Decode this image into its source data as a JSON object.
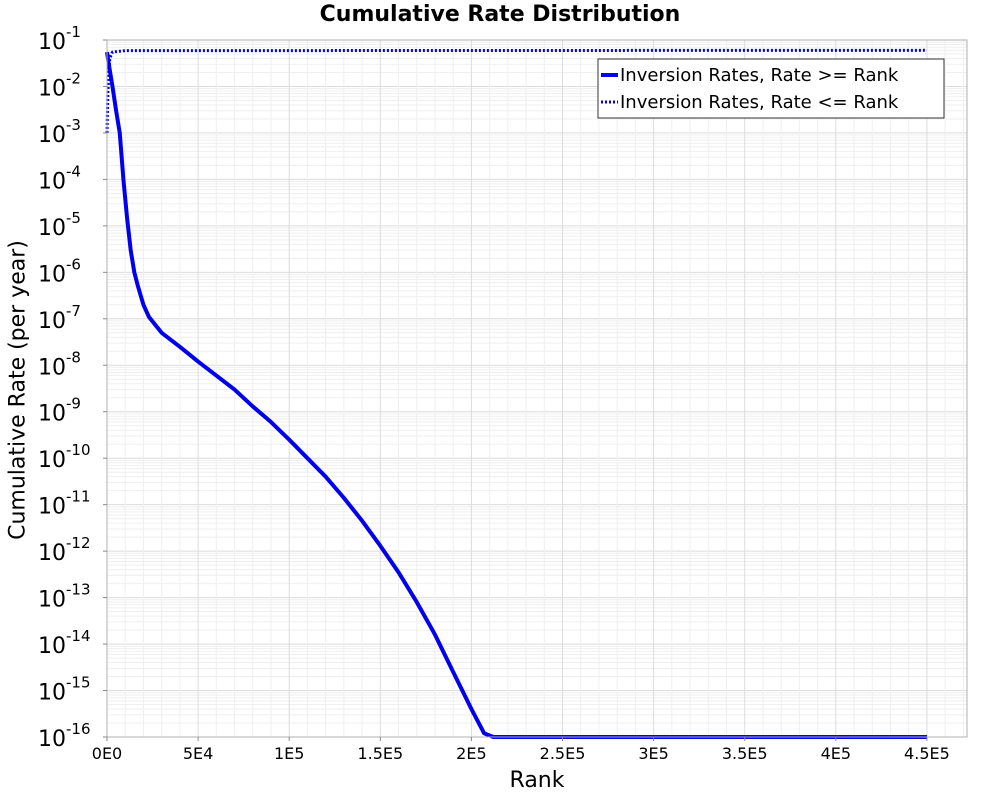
{
  "chart_data": {
    "type": "line",
    "title": "Cumulative Rate Distribution",
    "xlabel": "Rank",
    "ylabel": "Cumulative Rate (per year)",
    "xlim": [
      0,
      472000
    ],
    "ylim_exponent": [
      -16,
      -1
    ],
    "y_scale": "log",
    "grid": true,
    "legend_position": "top-right",
    "x_ticks": [
      {
        "value": 0,
        "label": "0E0"
      },
      {
        "value": 50000,
        "label": "5E4"
      },
      {
        "value": 100000,
        "label": "1E5"
      },
      {
        "value": 150000,
        "label": "1.5E5"
      },
      {
        "value": 200000,
        "label": "2E5"
      },
      {
        "value": 250000,
        "label": "2.5E5"
      },
      {
        "value": 300000,
        "label": "3E5"
      },
      {
        "value": 350000,
        "label": "3.5E5"
      },
      {
        "value": 400000,
        "label": "4E5"
      },
      {
        "value": 450000,
        "label": "4.5E5"
      }
    ],
    "y_ticks": [
      {
        "exp": -1,
        "base": "10",
        "power": "-1"
      },
      {
        "exp": -2,
        "base": "10",
        "power": "-2"
      },
      {
        "exp": -3,
        "base": "10",
        "power": "-3"
      },
      {
        "exp": -4,
        "base": "10",
        "power": "-4"
      },
      {
        "exp": -5,
        "base": "10",
        "power": "-5"
      },
      {
        "exp": -6,
        "base": "10",
        "power": "-6"
      },
      {
        "exp": -7,
        "base": "10",
        "power": "-7"
      },
      {
        "exp": -8,
        "base": "10",
        "power": "-8"
      },
      {
        "exp": -9,
        "base": "10",
        "power": "-9"
      },
      {
        "exp": -10,
        "base": "10",
        "power": "-10"
      },
      {
        "exp": -11,
        "base": "10",
        "power": "-11"
      },
      {
        "exp": -12,
        "base": "10",
        "power": "-12"
      },
      {
        "exp": -13,
        "base": "10",
        "power": "-13"
      },
      {
        "exp": -14,
        "base": "10",
        "power": "-14"
      },
      {
        "exp": -15,
        "base": "10",
        "power": "-15"
      },
      {
        "exp": -16,
        "base": "10",
        "power": "-16"
      }
    ],
    "series": [
      {
        "name": "Inversion Rates, Rate >= Rank",
        "style": "solid",
        "color": "#0000ee",
        "points": [
          [
            0,
            0.055
          ],
          [
            1000,
            0.03
          ],
          [
            3000,
            0.01
          ],
          [
            5000,
            0.003
          ],
          [
            7000,
            0.001
          ],
          [
            9000,
            0.0001
          ],
          [
            11000,
            1.5e-05
          ],
          [
            13000,
            3e-06
          ],
          [
            15000,
            1e-06
          ],
          [
            17000,
            5e-07
          ],
          [
            20000,
            2e-07
          ],
          [
            23000,
            1.1e-07
          ],
          [
            27000,
            7e-08
          ],
          [
            30000,
            5e-08
          ],
          [
            40000,
            2.5e-08
          ],
          [
            50000,
            1.2e-08
          ],
          [
            60000,
            6e-09
          ],
          [
            70000,
            3e-09
          ],
          [
            80000,
            1.3e-09
          ],
          [
            90000,
            6e-10
          ],
          [
            100000,
            2.5e-10
          ],
          [
            110000,
            1e-10
          ],
          [
            120000,
            4e-11
          ],
          [
            130000,
            1.4e-11
          ],
          [
            140000,
            4.5e-12
          ],
          [
            150000,
            1.3e-12
          ],
          [
            160000,
            3.5e-13
          ],
          [
            170000,
            8e-14
          ],
          [
            180000,
            1.6e-14
          ],
          [
            190000,
            2.5e-15
          ],
          [
            200000,
            4e-16
          ],
          [
            207000,
            1.2e-16
          ],
          [
            212000,
            1e-16
          ],
          [
            450000,
            1e-16
          ]
        ]
      },
      {
        "name": "Inversion Rates, Rate <= Rank",
        "style": "dotted",
        "color": "#0000ee",
        "points": [
          [
            0,
            0.001
          ],
          [
            500,
            0.008
          ],
          [
            1500,
            0.04
          ],
          [
            3000,
            0.055
          ],
          [
            10000,
            0.059
          ],
          [
            450000,
            0.06
          ]
        ]
      }
    ]
  }
}
